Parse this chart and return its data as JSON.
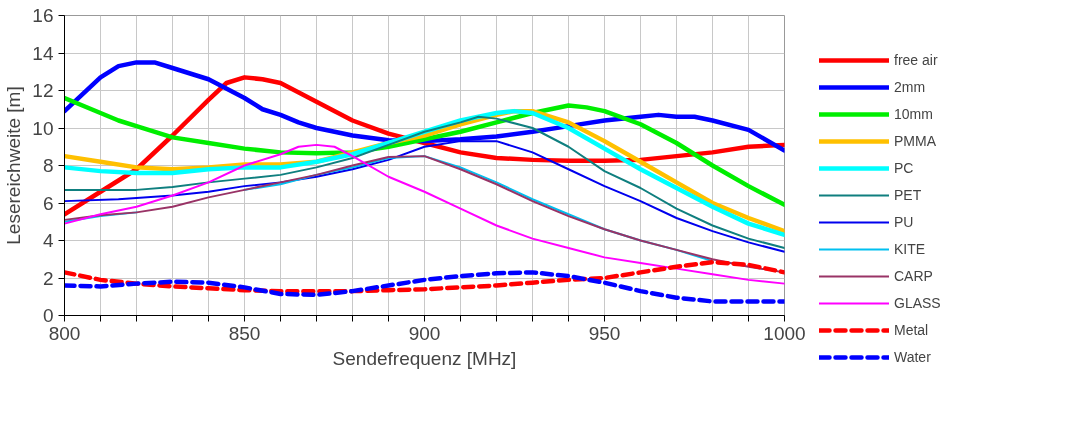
{
  "chart_data": {
    "type": "line",
    "xlabel": "Sendefrequenz [MHz]",
    "ylabel": "Lesereichweite [m]",
    "xlim": [
      800,
      1000
    ],
    "ylim": [
      0,
      16
    ],
    "xticks": [
      800,
      {
        "value": 810,
        "label": null
      },
      {
        "value": 820,
        "label": null
      },
      {
        "value": 830,
        "label": null
      },
      {
        "value": 840,
        "label": null
      },
      850,
      {
        "value": 860,
        "label": null
      },
      {
        "value": 870,
        "label": null
      },
      {
        "value": 880,
        "label": null
      },
      {
        "value": 890,
        "label": null
      },
      900,
      {
        "value": 910,
        "label": null
      },
      {
        "value": 920,
        "label": null
      },
      {
        "value": 930,
        "label": null
      },
      {
        "value": 940,
        "label": null
      },
      950,
      {
        "value": 960,
        "label": null
      },
      {
        "value": 970,
        "label": null
      },
      {
        "value": 980,
        "label": null
      },
      {
        "value": 990,
        "label": null
      },
      1000
    ],
    "yticks": [
      0,
      2,
      4,
      6,
      8,
      10,
      12,
      14,
      16
    ],
    "grid": true,
    "legend": "right",
    "marker": "none",
    "series": [
      {
        "name": "free air",
        "color": "#ff0000",
        "line_style": "solid",
        "x": [
          800,
          810,
          820,
          830,
          840,
          845,
          850,
          855,
          860,
          870,
          880,
          890,
          900,
          910,
          920,
          930,
          940,
          950,
          960,
          970,
          980,
          990,
          1000
        ],
        "values": [
          5.4,
          6.6,
          7.8,
          9.6,
          11.5,
          12.4,
          12.7,
          12.6,
          12.4,
          11.4,
          10.4,
          9.7,
          9.2,
          8.7,
          8.4,
          8.3,
          8.25,
          8.25,
          8.3,
          8.5,
          8.7,
          9.0,
          9.1
        ]
      },
      {
        "name": "2mm",
        "color": "#0000ff",
        "line_style": "solid",
        "x": [
          800,
          810,
          815,
          820,
          825,
          830,
          840,
          850,
          855,
          860,
          865,
          870,
          880,
          890,
          900,
          910,
          920,
          930,
          940,
          950,
          960,
          965,
          970,
          975,
          980,
          990,
          1000
        ],
        "values": [
          10.9,
          12.7,
          13.3,
          13.5,
          13.5,
          13.2,
          12.6,
          11.6,
          11.0,
          10.7,
          10.3,
          10.0,
          9.6,
          9.35,
          9.3,
          9.4,
          9.55,
          9.8,
          10.1,
          10.4,
          10.6,
          10.7,
          10.6,
          10.6,
          10.4,
          9.9,
          8.8
        ]
      },
      {
        "name": "10mm",
        "color": "#00ee00",
        "line_style": "solid",
        "x": [
          800,
          810,
          815,
          820,
          830,
          840,
          850,
          860,
          870,
          880,
          890,
          900,
          910,
          920,
          930,
          935,
          940,
          945,
          950,
          960,
          970,
          980,
          990,
          1000
        ],
        "values": [
          11.6,
          10.8,
          10.4,
          10.1,
          9.5,
          9.2,
          8.9,
          8.7,
          8.65,
          8.7,
          9.0,
          9.4,
          9.8,
          10.3,
          10.8,
          11.0,
          11.2,
          11.1,
          10.9,
          10.2,
          9.2,
          8.0,
          6.9,
          5.9
        ]
      },
      {
        "name": "PMMA",
        "color": "#ffc000",
        "line_style": "solid",
        "x": [
          800,
          810,
          820,
          830,
          840,
          850,
          860,
          870,
          880,
          890,
          900,
          910,
          920,
          925,
          930,
          940,
          950,
          960,
          970,
          980,
          990,
          1000
        ],
        "values": [
          8.5,
          8.2,
          7.9,
          7.8,
          7.9,
          8.05,
          8.05,
          8.2,
          8.7,
          9.2,
          9.6,
          10.2,
          10.7,
          10.9,
          10.9,
          10.3,
          9.3,
          8.2,
          7.1,
          6.0,
          5.2,
          4.5
        ]
      },
      {
        "name": "PC",
        "color": "#00ffff",
        "line_style": "solid",
        "x": [
          800,
          810,
          820,
          830,
          840,
          850,
          860,
          870,
          880,
          890,
          900,
          910,
          920,
          925,
          930,
          940,
          950,
          960,
          970,
          980,
          990,
          1000
        ],
        "values": [
          7.9,
          7.7,
          7.6,
          7.6,
          7.8,
          7.9,
          7.9,
          8.2,
          8.6,
          9.2,
          9.8,
          10.4,
          10.8,
          10.9,
          10.8,
          10.0,
          8.9,
          7.8,
          6.8,
          5.8,
          4.9,
          4.3
        ]
      },
      {
        "name": "PET",
        "color": "#0f7f7f",
        "line_style": "solid",
        "x": [
          800,
          820,
          830,
          840,
          850,
          860,
          870,
          880,
          890,
          900,
          910,
          915,
          920,
          930,
          940,
          950,
          960,
          970,
          980,
          990,
          1000
        ],
        "values": [
          6.7,
          6.7,
          6.85,
          7.1,
          7.3,
          7.5,
          7.9,
          8.4,
          9.1,
          9.8,
          10.3,
          10.6,
          10.5,
          10.0,
          9.0,
          7.7,
          6.8,
          5.7,
          4.8,
          4.1,
          3.6
        ]
      },
      {
        "name": "PU",
        "color": "#0000ee",
        "line_style": "solid",
        "x": [
          800,
          815,
          830,
          840,
          850,
          860,
          870,
          880,
          890,
          900,
          910,
          920,
          930,
          940,
          950,
          960,
          970,
          980,
          990,
          1000
        ],
        "values": [
          6.1,
          6.2,
          6.4,
          6.6,
          6.9,
          7.1,
          7.4,
          7.8,
          8.3,
          9.0,
          9.3,
          9.3,
          8.7,
          7.8,
          6.9,
          6.1,
          5.2,
          4.5,
          3.9,
          3.4
        ]
      },
      {
        "name": "KITE",
        "color": "#00c0f0",
        "line_style": "solid",
        "x": [
          800,
          810,
          820,
          830,
          840,
          850,
          860,
          870,
          880,
          890,
          900,
          910,
          920,
          930,
          940,
          950,
          960,
          970,
          980
        ],
        "values": [
          5.0,
          5.3,
          5.5,
          null,
          null,
          6.7,
          7.0,
          7.5,
          7.9,
          8.4,
          8.5,
          7.9,
          7.1,
          6.2,
          5.4,
          4.6,
          4.0,
          3.5,
          2.9
        ]
      },
      {
        "name": "CARP",
        "color": "#993366",
        "line_style": "solid",
        "x": [
          800,
          810,
          820,
          830,
          840,
          850,
          860,
          870,
          880,
          890,
          900,
          910,
          920,
          930,
          940,
          950,
          960,
          970,
          980,
          990,
          1000
        ],
        "values": [
          5.1,
          5.35,
          5.5,
          5.8,
          6.3,
          6.7,
          7.1,
          7.5,
          8.0,
          8.45,
          8.5,
          7.8,
          7.0,
          6.1,
          5.3,
          4.6,
          4.0,
          3.5,
          3.0,
          2.6,
          2.3
        ]
      },
      {
        "name": "GLASS",
        "color": "#ff00ff",
        "line_style": "solid",
        "x": [
          800,
          810,
          820,
          830,
          840,
          850,
          860,
          865,
          870,
          875,
          880,
          890,
          900,
          910,
          920,
          930,
          940,
          950,
          960,
          970,
          980,
          990,
          1000
        ],
        "values": [
          4.9,
          5.4,
          5.8,
          6.4,
          7.1,
          8.0,
          8.6,
          9.0,
          9.1,
          9.0,
          8.5,
          7.4,
          6.6,
          5.7,
          4.8,
          4.1,
          3.6,
          3.1,
          2.8,
          2.5,
          2.2,
          1.9,
          1.7
        ]
      },
      {
        "name": "Metal",
        "color": "#ff0000",
        "line_style": "dashed",
        "x": [
          800,
          810,
          820,
          830,
          840,
          850,
          860,
          870,
          880,
          890,
          900,
          910,
          920,
          930,
          940,
          950,
          960,
          970,
          980,
          990,
          1000
        ],
        "values": [
          2.3,
          1.9,
          1.7,
          1.55,
          1.45,
          1.35,
          1.3,
          1.3,
          1.3,
          1.35,
          1.4,
          1.5,
          1.6,
          1.75,
          1.9,
          2.0,
          2.3,
          2.6,
          2.85,
          2.7,
          2.3
        ]
      },
      {
        "name": "Water",
        "color": "#0000ff",
        "line_style": "dashed",
        "x": [
          800,
          810,
          820,
          830,
          840,
          850,
          860,
          870,
          880,
          890,
          900,
          910,
          920,
          930,
          940,
          950,
          960,
          970,
          980,
          990,
          1000
        ],
        "values": [
          1.6,
          1.55,
          1.7,
          1.8,
          1.75,
          1.5,
          1.15,
          1.1,
          1.3,
          1.6,
          1.9,
          2.1,
          2.25,
          2.3,
          2.1,
          1.75,
          1.3,
          0.95,
          0.75,
          0.75,
          0.75
        ]
      }
    ]
  }
}
